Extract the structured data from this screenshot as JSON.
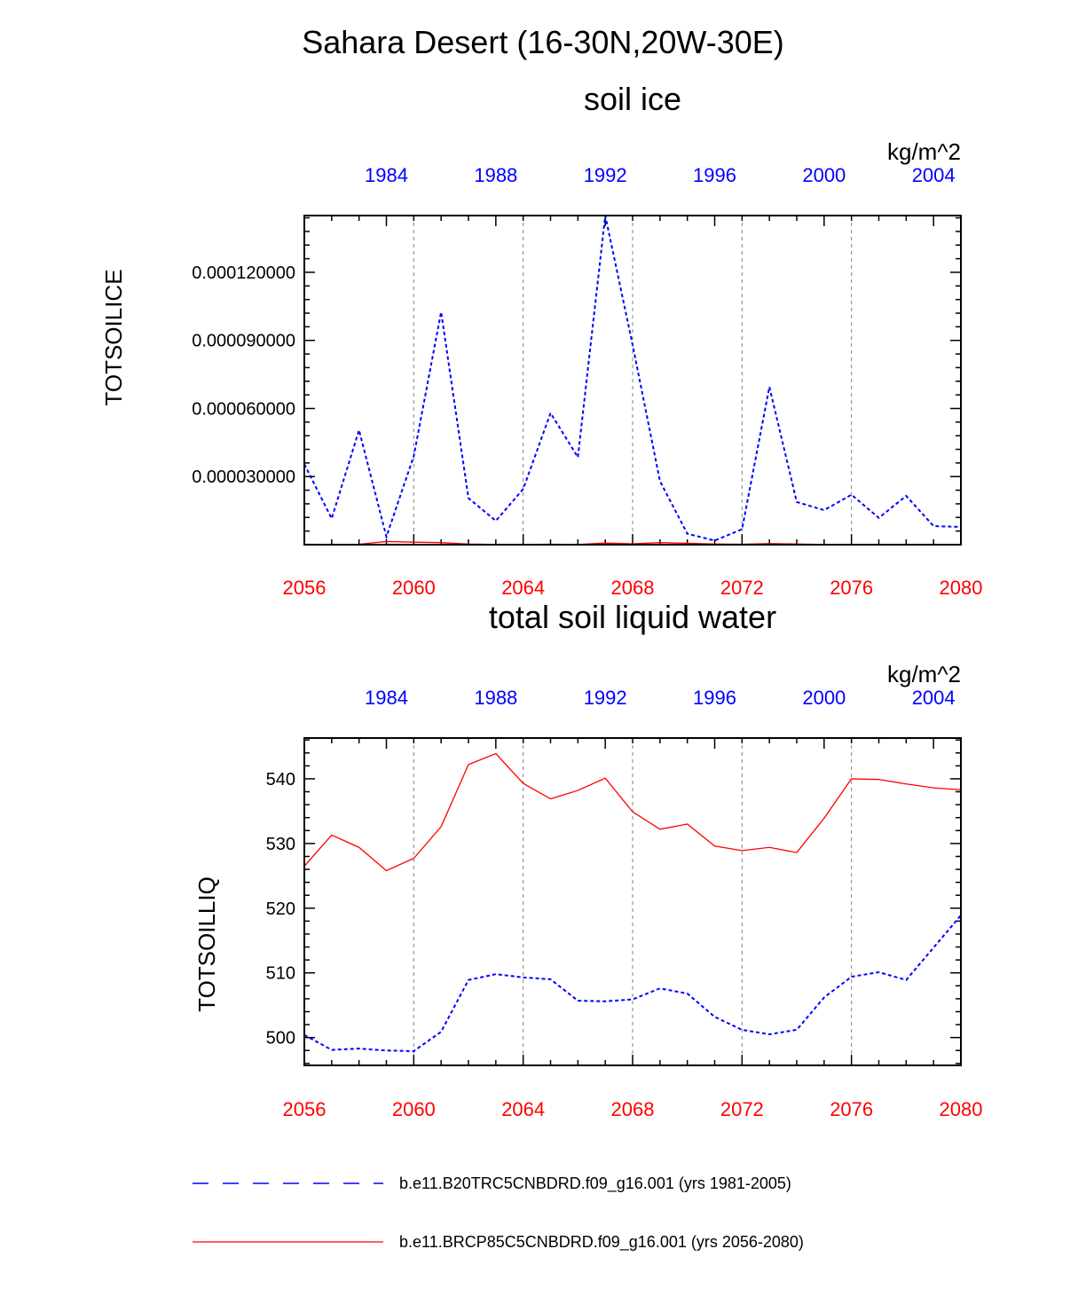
{
  "figure": {
    "title": "Sahara Desert (16-30N,20W-30E)"
  },
  "colors": {
    "historical": "#0000ff",
    "future": "#ff0000",
    "axis": "#000000",
    "grid": "#808080"
  },
  "legend": [
    {
      "label": "b.e11.B20TRC5CNBDRD.f09_g16.001 (yrs 1981-2005)",
      "color": "#0000ff",
      "style": "dashed"
    },
    {
      "label": "b.e11.BRCP85C5CNBDRD.f09_g16.001 (yrs 2056-2080)",
      "color": "#ff0000",
      "style": "solid"
    }
  ],
  "chart_data": [
    {
      "type": "line",
      "title": "soil ice",
      "units": "kg/m^2",
      "ylabel": "TOTSOILICE",
      "bottom_axis": {
        "range": [
          2056,
          2080
        ],
        "ticks": [
          "2056",
          "2060",
          "2064",
          "2068",
          "2072",
          "2076",
          "2080"
        ],
        "tick_values": [
          2056,
          2060,
          2064,
          2068,
          2072,
          2076,
          2080
        ]
      },
      "top_axis": {
        "range": [
          1981,
          2005
        ],
        "ticks": [
          "1984",
          "1988",
          "1992",
          "1996",
          "2000",
          "2004"
        ],
        "tick_values": [
          1984,
          1988,
          1992,
          1996,
          2000,
          2004
        ]
      },
      "ylim": [
        0,
        0.000145
      ],
      "yticks": [
        "0.000030000",
        "0.000060000",
        "0.000090000",
        "0.000120000"
      ],
      "ytick_values": [
        3e-05,
        6e-05,
        9e-05,
        0.00012
      ],
      "grid": "vertical dashed at bottom-axis ticks",
      "series": [
        {
          "name": "b.e11.B20TRC5CNBDRD.f09_g16.001 (yrs 1981-2005)",
          "axis": "top",
          "color": "#0000ff",
          "style": "dashed",
          "x": [
            1981,
            1982,
            1983,
            1984,
            1985,
            1986,
            1987,
            1988,
            1989,
            1990,
            1991,
            1992,
            1993,
            1994,
            1995,
            1996,
            1997,
            1998,
            1999,
            2000,
            2001,
            2002,
            2003,
            2004,
            2005
          ],
          "values": [
            3.55e-05,
            1.15e-05,
            5.05e-05,
            3.5e-06,
            3.9e-05,
            0.0001025,
            2.05e-05,
            1.05e-05,
            2.45e-05,
            5.8e-05,
            3.85e-05,
            0.000145,
            8.8e-05,
            2.8e-05,
            4.8e-06,
            1.8e-06,
            6.8e-06,
            6.95e-05,
            1.88e-05,
            1.52e-05,
            2.2e-05,
            1.18e-05,
            2.15e-05,
            8.2e-06,
            7.8e-06
          ]
        },
        {
          "name": "b.e11.BRCP85C5CNBDRD.f09_g16.001 (yrs 2056-2080)",
          "axis": "bottom",
          "color": "#ff0000",
          "style": "solid",
          "x": [
            2056,
            2057,
            2058,
            2059,
            2060,
            2061,
            2062,
            2063,
            2064,
            2065,
            2066,
            2067,
            2068,
            2069,
            2070,
            2071,
            2072,
            2073,
            2074,
            2075,
            2076,
            2077,
            2078,
            2079,
            2080
          ],
          "values": [
            2e-07,
            1e-07,
            2e-07,
            1.4e-06,
            1.1e-06,
            9e-07,
            3e-07,
            1e-07,
            1e-07,
            2e-07,
            1e-07,
            7e-07,
            4e-07,
            9e-07,
            6e-07,
            3e-07,
            2e-07,
            5e-07,
            3e-07,
            1e-07,
            1e-07,
            1e-07,
            1e-07,
            1e-07,
            1e-07
          ]
        }
      ]
    },
    {
      "type": "line",
      "title": "total soil liquid water",
      "units": "kg/m^2",
      "ylabel": "TOTSOILLIQ",
      "bottom_axis": {
        "range": [
          2056,
          2080
        ],
        "ticks": [
          "2056",
          "2060",
          "2064",
          "2068",
          "2072",
          "2076",
          "2080"
        ],
        "tick_values": [
          2056,
          2060,
          2064,
          2068,
          2072,
          2076,
          2080
        ]
      },
      "top_axis": {
        "range": [
          1981,
          2005
        ],
        "ticks": [
          "1984",
          "1988",
          "1992",
          "1996",
          "2000",
          "2004"
        ],
        "tick_values": [
          1984,
          1988,
          1992,
          1996,
          2000,
          2004
        ]
      },
      "ylim": [
        495.7,
        546.3
      ],
      "yticks": [
        "500",
        "510",
        "520",
        "530",
        "540"
      ],
      "ytick_values": [
        500,
        510,
        520,
        530,
        540
      ],
      "grid": "vertical dashed at bottom-axis ticks",
      "series": [
        {
          "name": "b.e11.B20TRC5CNBDRD.f09_g16.001 (yrs 1981-2005)",
          "axis": "top",
          "color": "#0000ff",
          "style": "dashed",
          "x": [
            1981,
            1982,
            1983,
            1984,
            1985,
            1986,
            1987,
            1988,
            1989,
            1990,
            1991,
            1992,
            1993,
            1994,
            1995,
            1996,
            1997,
            1998,
            1999,
            2000,
            2001,
            2002,
            2003,
            2004,
            2005
          ],
          "values": [
            500.4,
            498.1,
            498.3,
            498.0,
            497.9,
            500.9,
            508.9,
            509.8,
            509.3,
            509.0,
            505.7,
            505.6,
            505.9,
            507.6,
            506.8,
            503.2,
            501.2,
            500.5,
            501.2,
            506.2,
            509.4,
            510.1,
            508.9,
            513.9,
            518.9
          ]
        },
        {
          "name": "b.e11.BRCP85C5CNBDRD.f09_g16.001 (yrs 2056-2080)",
          "axis": "bottom",
          "color": "#ff0000",
          "style": "solid",
          "x": [
            2056,
            2057,
            2058,
            2059,
            2060,
            2061,
            2062,
            2063,
            2064,
            2065,
            2066,
            2067,
            2068,
            2069,
            2070,
            2071,
            2072,
            2073,
            2074,
            2075,
            2076,
            2077,
            2078,
            2079,
            2080
          ],
          "values": [
            526.5,
            531.3,
            529.4,
            525.8,
            527.7,
            532.6,
            542.2,
            543.9,
            539.3,
            536.9,
            538.2,
            540.1,
            534.9,
            532.2,
            533.0,
            529.6,
            528.9,
            529.4,
            528.6,
            533.9,
            540.0,
            539.9,
            539.2,
            538.6,
            538.3
          ]
        }
      ]
    }
  ]
}
